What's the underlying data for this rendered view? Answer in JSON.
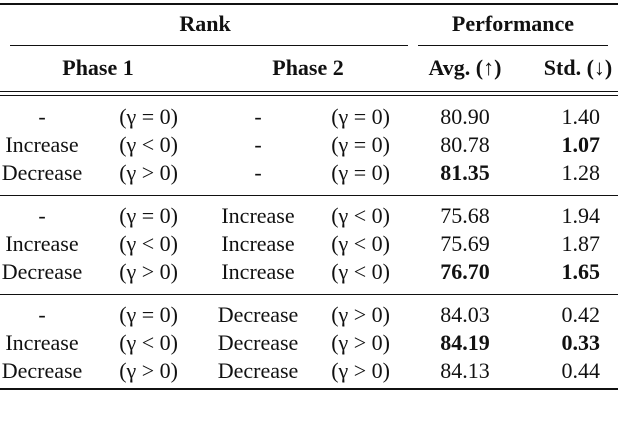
{
  "table": {
    "group_headers": [
      "Rank",
      "Performance"
    ],
    "headers": [
      "Phase 1",
      "Phase 2",
      "Avg. (↑)",
      "Std. (↓)"
    ],
    "rows": [
      [
        {
          "label": "-",
          "cond": "(γ = 0)"
        },
        {
          "label": "-",
          "cond": "(γ = 0)"
        },
        {
          "text": "80.90",
          "bold": false
        },
        {
          "text": "1.40",
          "bold": false
        }
      ],
      [
        {
          "label": "Increase",
          "cond": "(γ < 0)"
        },
        {
          "label": "-",
          "cond": "(γ = 0)"
        },
        {
          "text": "80.78",
          "bold": false
        },
        {
          "text": "1.07",
          "bold": true
        }
      ],
      [
        {
          "label": "Decrease",
          "cond": "(γ > 0)"
        },
        {
          "label": "-",
          "cond": "(γ = 0)"
        },
        {
          "text": "81.35",
          "bold": true
        },
        {
          "text": "1.28",
          "bold": false
        }
      ],
      [
        {
          "label": "-",
          "cond": "(γ = 0)"
        },
        {
          "label": "Increase",
          "cond": "(γ < 0)"
        },
        {
          "text": "75.68",
          "bold": false
        },
        {
          "text": "1.94",
          "bold": false
        }
      ],
      [
        {
          "label": "Increase",
          "cond": "(γ < 0)"
        },
        {
          "label": "Increase",
          "cond": "(γ < 0)"
        },
        {
          "text": "75.69",
          "bold": false
        },
        {
          "text": "1.87",
          "bold": false
        }
      ],
      [
        {
          "label": "Decrease",
          "cond": "(γ > 0)"
        },
        {
          "label": "Increase",
          "cond": "(γ < 0)"
        },
        {
          "text": "76.70",
          "bold": true
        },
        {
          "text": "1.65",
          "bold": true
        }
      ],
      [
        {
          "label": "-",
          "cond": "(γ = 0)"
        },
        {
          "label": "Decrease",
          "cond": "(γ > 0)"
        },
        {
          "text": "84.03",
          "bold": false
        },
        {
          "text": "0.42",
          "bold": false
        }
      ],
      [
        {
          "label": "Increase",
          "cond": "(γ < 0)"
        },
        {
          "label": "Decrease",
          "cond": "(γ > 0)"
        },
        {
          "text": "84.19",
          "bold": true
        },
        {
          "text": "0.33",
          "bold": true
        }
      ],
      [
        {
          "label": "Decrease",
          "cond": "(γ > 0)"
        },
        {
          "label": "Decrease",
          "cond": "(γ > 0)"
        },
        {
          "text": "84.13",
          "bold": false
        },
        {
          "text": "0.44",
          "bold": false
        }
      ]
    ]
  }
}
